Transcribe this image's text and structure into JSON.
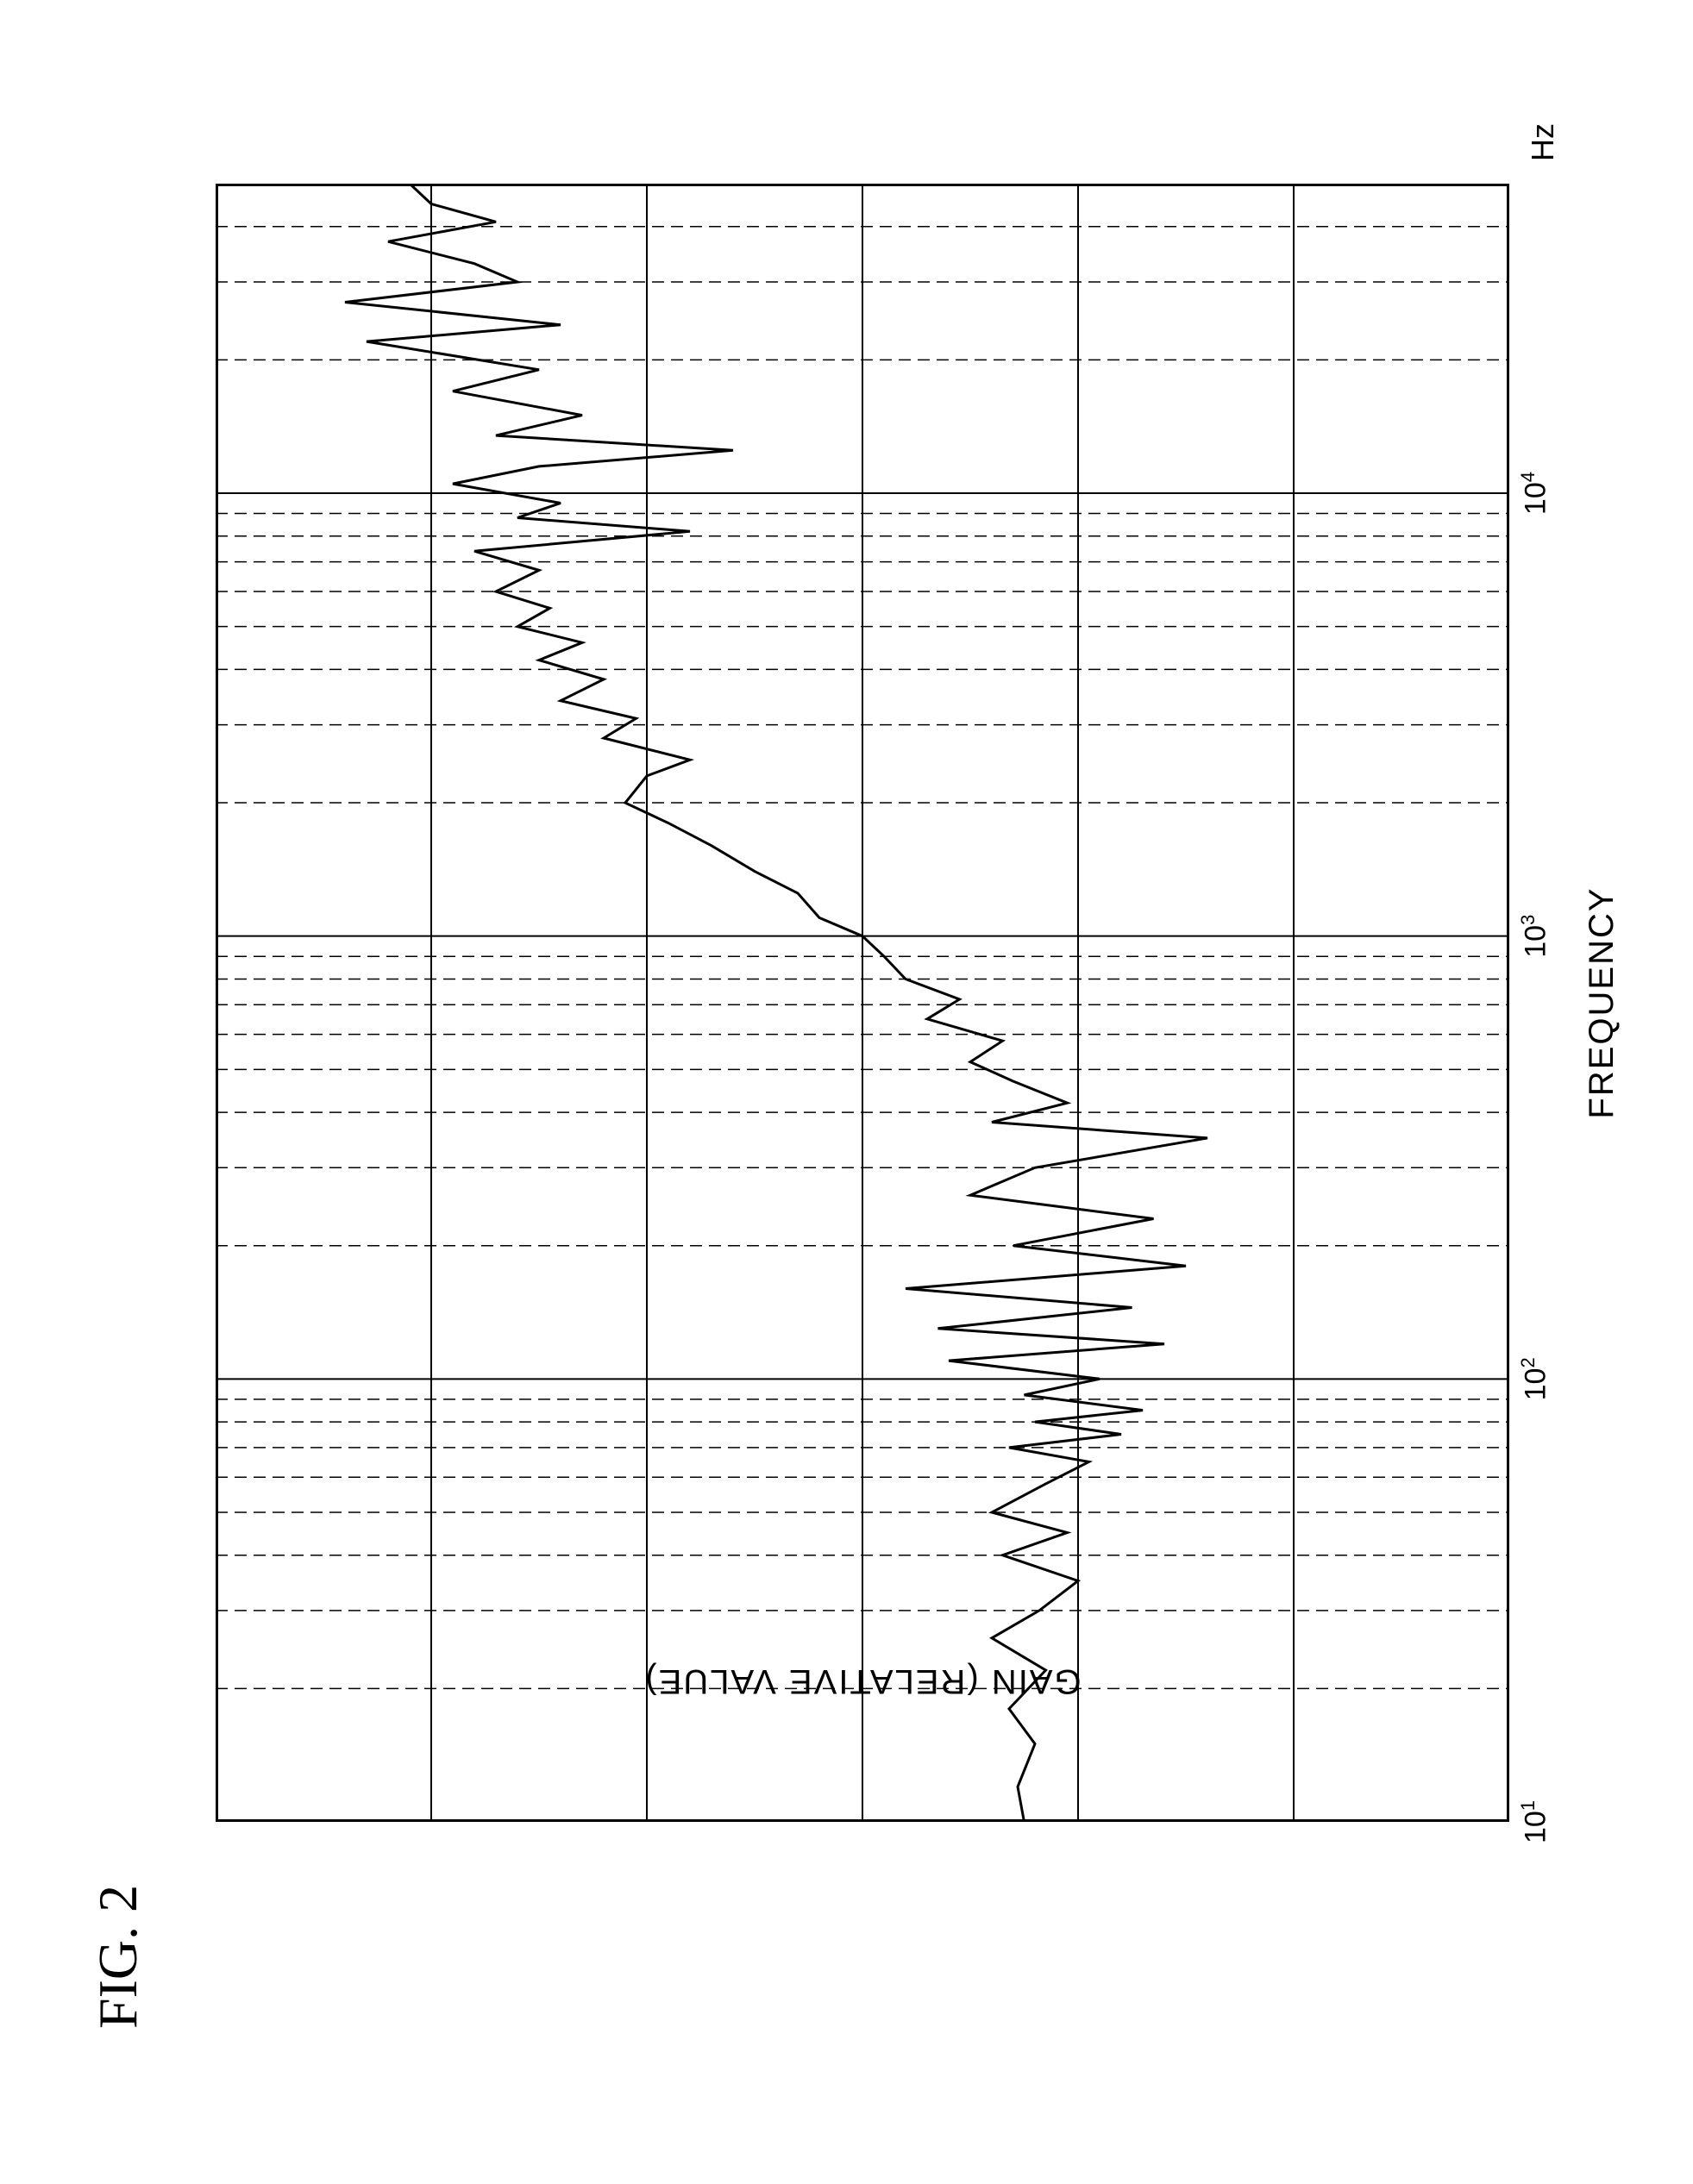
{
  "figure_label": "FIG. 2",
  "chart": {
    "type": "line",
    "xlabel": "FREQUENCY",
    "ylabel": "GAIN (RELATIVE VALUE)",
    "xunit": "Hz",
    "xscale": "log",
    "xlim": [
      10,
      50000
    ],
    "xticks": [
      {
        "value": 10,
        "label_base": "10",
        "label_exp": "1"
      },
      {
        "value": 100,
        "label_base": "10",
        "label_exp": "2"
      },
      {
        "value": 1000,
        "label_base": "10",
        "label_exp": "3"
      },
      {
        "value": 10000,
        "label_base": "10",
        "label_exp": "4"
      }
    ],
    "ylim": [
      -30,
      30
    ],
    "ytick_step": 10,
    "background_color": "#ffffff",
    "border_color": "#000000",
    "grid_color": "#000000",
    "trace_color": "#000000",
    "trace_width": 3,
    "title_fontsize": 64,
    "label_fontsize": 40,
    "series": [
      {
        "freq": 10,
        "gain": -7.5
      },
      {
        "freq": 12,
        "gain": -7.2
      },
      {
        "freq": 15,
        "gain": -8.0
      },
      {
        "freq": 18,
        "gain": -6.8
      },
      {
        "freq": 22,
        "gain": -8.5
      },
      {
        "freq": 26,
        "gain": -6.0
      },
      {
        "freq": 30,
        "gain": -8.2
      },
      {
        "freq": 35,
        "gain": -10.0
      },
      {
        "freq": 40,
        "gain": -6.5
      },
      {
        "freq": 45,
        "gain": -9.5
      },
      {
        "freq": 50,
        "gain": -6.0
      },
      {
        "freq": 58,
        "gain": -8.5
      },
      {
        "freq": 65,
        "gain": -10.5
      },
      {
        "freq": 70,
        "gain": -6.8
      },
      {
        "freq": 75,
        "gain": -12.0
      },
      {
        "freq": 80,
        "gain": -8.0
      },
      {
        "freq": 85,
        "gain": -13.0
      },
      {
        "freq": 92,
        "gain": -7.5
      },
      {
        "freq": 100,
        "gain": -11.0
      },
      {
        "freq": 110,
        "gain": -4.0
      },
      {
        "freq": 120,
        "gain": -14.0
      },
      {
        "freq": 130,
        "gain": -3.5
      },
      {
        "freq": 145,
        "gain": -12.5
      },
      {
        "freq": 160,
        "gain": -2.0
      },
      {
        "freq": 180,
        "gain": -15.0
      },
      {
        "freq": 200,
        "gain": -7.0
      },
      {
        "freq": 230,
        "gain": -13.5
      },
      {
        "freq": 260,
        "gain": -5.0
      },
      {
        "freq": 300,
        "gain": -8.0
      },
      {
        "freq": 350,
        "gain": -16.0
      },
      {
        "freq": 380,
        "gain": -6.0
      },
      {
        "freq": 420,
        "gain": -9.5
      },
      {
        "freq": 470,
        "gain": -7.0
      },
      {
        "freq": 520,
        "gain": -5.0
      },
      {
        "freq": 580,
        "gain": -6.5
      },
      {
        "freq": 650,
        "gain": -3.0
      },
      {
        "freq": 720,
        "gain": -4.5
      },
      {
        "freq": 800,
        "gain": -2.0
      },
      {
        "freq": 900,
        "gain": -1.0
      },
      {
        "freq": 1000,
        "gain": 0.0
      },
      {
        "freq": 1100,
        "gain": 2.0
      },
      {
        "freq": 1250,
        "gain": 3.0
      },
      {
        "freq": 1400,
        "gain": 5.0
      },
      {
        "freq": 1600,
        "gain": 7.0
      },
      {
        "freq": 1800,
        "gain": 9.0
      },
      {
        "freq": 2000,
        "gain": 11.0
      },
      {
        "freq": 2300,
        "gain": 10.0
      },
      {
        "freq": 2500,
        "gain": 8.0
      },
      {
        "freq": 2800,
        "gain": 12.0
      },
      {
        "freq": 3100,
        "gain": 10.5
      },
      {
        "freq": 3400,
        "gain": 14.0
      },
      {
        "freq": 3800,
        "gain": 12.0
      },
      {
        "freq": 4200,
        "gain": 15.0
      },
      {
        "freq": 4600,
        "gain": 13.0
      },
      {
        "freq": 5000,
        "gain": 16.0
      },
      {
        "freq": 5500,
        "gain": 14.5
      },
      {
        "freq": 6000,
        "gain": 17.0
      },
      {
        "freq": 6700,
        "gain": 15.0
      },
      {
        "freq": 7400,
        "gain": 18.0
      },
      {
        "freq": 8200,
        "gain": 8.0
      },
      {
        "freq": 8800,
        "gain": 16.0
      },
      {
        "freq": 9500,
        "gain": 14.0
      },
      {
        "freq": 10500,
        "gain": 19.0
      },
      {
        "freq": 11500,
        "gain": 15.0
      },
      {
        "freq": 12500,
        "gain": 6.0
      },
      {
        "freq": 13500,
        "gain": 17.0
      },
      {
        "freq": 15000,
        "gain": 13.0
      },
      {
        "freq": 17000,
        "gain": 19.0
      },
      {
        "freq": 19000,
        "gain": 15.0
      },
      {
        "freq": 22000,
        "gain": 23.0
      },
      {
        "freq": 24000,
        "gain": 14.0
      },
      {
        "freq": 27000,
        "gain": 24.0
      },
      {
        "freq": 30000,
        "gain": 16.0
      },
      {
        "freq": 33000,
        "gain": 18.0
      },
      {
        "freq": 37000,
        "gain": 22.0
      },
      {
        "freq": 41000,
        "gain": 17.0
      },
      {
        "freq": 45000,
        "gain": 20.0
      },
      {
        "freq": 50000,
        "gain": 21.0
      }
    ]
  }
}
